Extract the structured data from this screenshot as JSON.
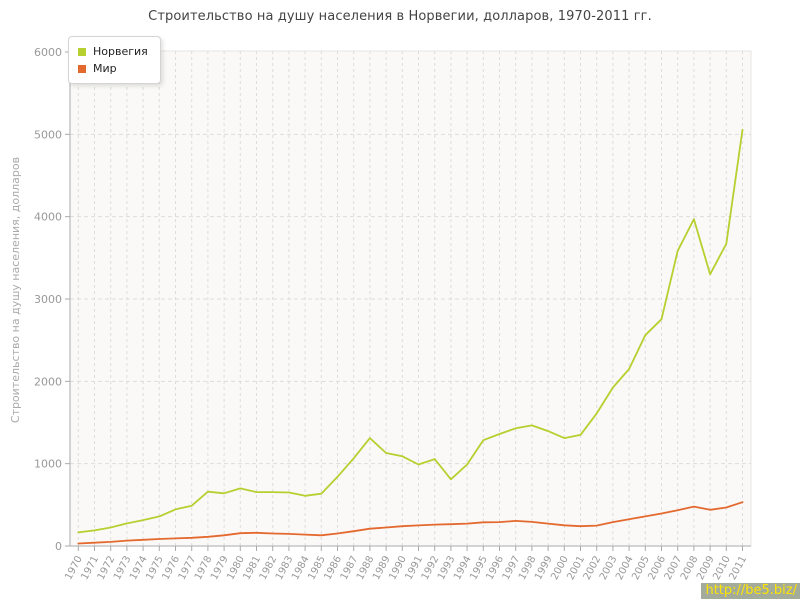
{
  "chart": {
    "title": "Строительство на душу населения в Норвегии, долларов, 1970-2011 гг.",
    "y_axis_title": "Строительство на душу населения, долларов"
  },
  "legend": {
    "items": [
      {
        "label": "Норвегия",
        "color": "#b5d02f"
      },
      {
        "label": "Мир",
        "color": "#e4692f"
      }
    ]
  },
  "watermark": {
    "text": "http://be5.biz/",
    "bg": "#a3ab9b",
    "fg": "#ffe400"
  },
  "palette": {
    "grid": "#dddddd",
    "axis": "#aaaaaa",
    "tick_label": "#999999",
    "plot_bg": "#faf9f7",
    "plot_border": "#e5e5e5"
  },
  "chart_data": {
    "type": "line",
    "title": "Строительство на душу населения в Норвегии, долларов, 1970-2011 гг.",
    "xlabel": "",
    "ylabel": "Строительство на душу населения, долларов",
    "x": [
      1970,
      1971,
      1972,
      1973,
      1974,
      1975,
      1976,
      1977,
      1978,
      1979,
      1980,
      1981,
      1982,
      1983,
      1984,
      1985,
      1986,
      1987,
      1988,
      1989,
      1990,
      1991,
      1992,
      1993,
      1994,
      1995,
      1996,
      1997,
      1998,
      1999,
      2000,
      2001,
      2002,
      2003,
      2004,
      2005,
      2006,
      2007,
      2008,
      2009,
      2010,
      2011
    ],
    "series": [
      {
        "name": "Норвегия",
        "color": "#b5d02f",
        "values": [
          165,
          190,
          225,
          275,
          315,
          360,
          445,
          490,
          660,
          640,
          700,
          655,
          655,
          650,
          610,
          635,
          840,
          1065,
          1310,
          1130,
          1090,
          990,
          1055,
          810,
          990,
          1285,
          1360,
          1430,
          1465,
          1395,
          1310,
          1350,
          1610,
          1925,
          2150,
          2560,
          2755,
          3585,
          3970,
          3300,
          3670,
          5055
        ]
      },
      {
        "name": "Мир",
        "color": "#e4692f",
        "values": [
          30,
          40,
          50,
          65,
          75,
          85,
          92,
          100,
          112,
          130,
          155,
          160,
          152,
          147,
          138,
          130,
          152,
          180,
          210,
          225,
          240,
          250,
          260,
          265,
          272,
          288,
          290,
          305,
          293,
          272,
          252,
          240,
          248,
          290,
          325,
          360,
          395,
          435,
          478,
          440,
          468,
          532
        ]
      }
    ],
    "ylim": [
      0,
      6000
    ],
    "yticks": [
      0,
      1000,
      2000,
      3000,
      4000,
      5000,
      6000
    ],
    "grid": true,
    "legend_position": "top-left"
  }
}
